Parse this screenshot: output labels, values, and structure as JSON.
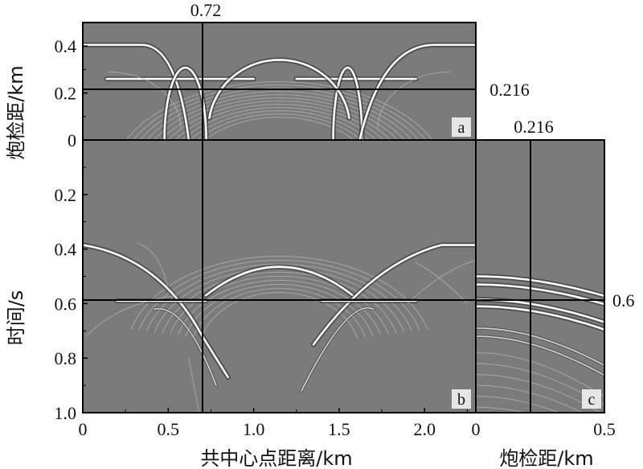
{
  "figure": {
    "y_axis_label_top": "炮检距/km",
    "y_axis_label_bottom": "时间/s",
    "x_axis_label_left": "共中心点距离/km",
    "x_axis_label_right": "炮检距/km"
  },
  "chart_data": [
    {
      "panel": "a",
      "type": "heatmap",
      "title": "",
      "xlabel": "",
      "ylabel": "炮检距/km",
      "xlim": [
        0,
        2.3
      ],
      "ylim": [
        0,
        0.5
      ],
      "ytick_labels": [
        "0",
        "0.2",
        "0.4"
      ],
      "cursor_x": "0.72",
      "cursor_y": "0.216",
      "grid": false
    },
    {
      "panel": "b",
      "type": "heatmap",
      "title": "",
      "xlabel": "共中心点距离/km",
      "ylabel": "时间/s",
      "xlim": [
        0,
        2.3
      ],
      "ylim": [
        1.0,
        0
      ],
      "xtick_labels": [
        "0",
        "0.5",
        "1.0",
        "1.5",
        "2.0"
      ],
      "ytick_labels": [
        "0.2",
        "0.4",
        "0.6",
        "0.8",
        "1.0"
      ],
      "cursor_x": "0.72",
      "cursor_y": "0.6",
      "grid": false
    },
    {
      "panel": "c",
      "type": "heatmap",
      "title": "",
      "xlabel": "炮检距/km",
      "ylabel": "",
      "xlim": [
        0,
        0.5
      ],
      "ylim": [
        1.0,
        0
      ],
      "xtick_labels": [
        "0",
        "0.5"
      ],
      "cursor_x": "0.216",
      "cursor_y": "0.6",
      "grid": false
    }
  ]
}
